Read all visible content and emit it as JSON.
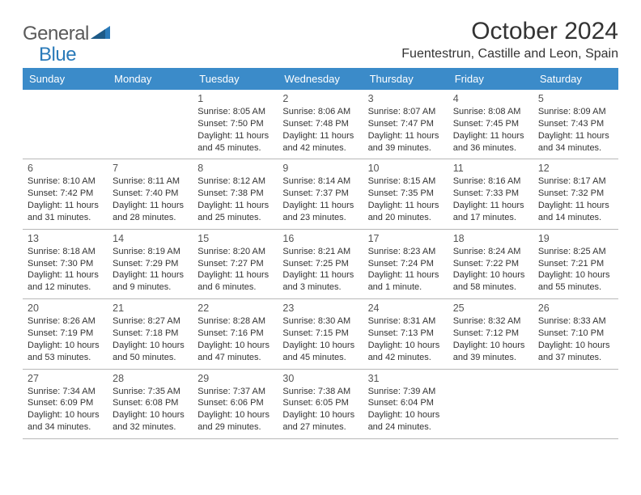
{
  "logo": {
    "text1": "General",
    "text2": "Blue"
  },
  "title": "October 2024",
  "location": "Fuentestrun, Castille and Leon, Spain",
  "colors": {
    "header_bg": "#3b8bc9",
    "header_text": "#ffffff",
    "page_bg": "#ffffff",
    "text": "#333333",
    "logo_gray": "#5a5a5a",
    "logo_blue": "#2a7ab9",
    "divider": "#b8b8b8"
  },
  "fonts": {
    "title_size": 30,
    "location_size": 16,
    "dayhead_size": 13,
    "daynum_size": 12.5,
    "info_size": 11
  },
  "dayheads": [
    "Sunday",
    "Monday",
    "Tuesday",
    "Wednesday",
    "Thursday",
    "Friday",
    "Saturday"
  ],
  "weeks": [
    [
      {
        "empty": true
      },
      {
        "empty": true
      },
      {
        "day": "1",
        "sunrise": "Sunrise: 8:05 AM",
        "sunset": "Sunset: 7:50 PM",
        "daylight": "Daylight: 11 hours and 45 minutes."
      },
      {
        "day": "2",
        "sunrise": "Sunrise: 8:06 AM",
        "sunset": "Sunset: 7:48 PM",
        "daylight": "Daylight: 11 hours and 42 minutes."
      },
      {
        "day": "3",
        "sunrise": "Sunrise: 8:07 AM",
        "sunset": "Sunset: 7:47 PM",
        "daylight": "Daylight: 11 hours and 39 minutes."
      },
      {
        "day": "4",
        "sunrise": "Sunrise: 8:08 AM",
        "sunset": "Sunset: 7:45 PM",
        "daylight": "Daylight: 11 hours and 36 minutes."
      },
      {
        "day": "5",
        "sunrise": "Sunrise: 8:09 AM",
        "sunset": "Sunset: 7:43 PM",
        "daylight": "Daylight: 11 hours and 34 minutes."
      }
    ],
    [
      {
        "day": "6",
        "sunrise": "Sunrise: 8:10 AM",
        "sunset": "Sunset: 7:42 PM",
        "daylight": "Daylight: 11 hours and 31 minutes."
      },
      {
        "day": "7",
        "sunrise": "Sunrise: 8:11 AM",
        "sunset": "Sunset: 7:40 PM",
        "daylight": "Daylight: 11 hours and 28 minutes."
      },
      {
        "day": "8",
        "sunrise": "Sunrise: 8:12 AM",
        "sunset": "Sunset: 7:38 PM",
        "daylight": "Daylight: 11 hours and 25 minutes."
      },
      {
        "day": "9",
        "sunrise": "Sunrise: 8:14 AM",
        "sunset": "Sunset: 7:37 PM",
        "daylight": "Daylight: 11 hours and 23 minutes."
      },
      {
        "day": "10",
        "sunrise": "Sunrise: 8:15 AM",
        "sunset": "Sunset: 7:35 PM",
        "daylight": "Daylight: 11 hours and 20 minutes."
      },
      {
        "day": "11",
        "sunrise": "Sunrise: 8:16 AM",
        "sunset": "Sunset: 7:33 PM",
        "daylight": "Daylight: 11 hours and 17 minutes."
      },
      {
        "day": "12",
        "sunrise": "Sunrise: 8:17 AM",
        "sunset": "Sunset: 7:32 PM",
        "daylight": "Daylight: 11 hours and 14 minutes."
      }
    ],
    [
      {
        "day": "13",
        "sunrise": "Sunrise: 8:18 AM",
        "sunset": "Sunset: 7:30 PM",
        "daylight": "Daylight: 11 hours and 12 minutes."
      },
      {
        "day": "14",
        "sunrise": "Sunrise: 8:19 AM",
        "sunset": "Sunset: 7:29 PM",
        "daylight": "Daylight: 11 hours and 9 minutes."
      },
      {
        "day": "15",
        "sunrise": "Sunrise: 8:20 AM",
        "sunset": "Sunset: 7:27 PM",
        "daylight": "Daylight: 11 hours and 6 minutes."
      },
      {
        "day": "16",
        "sunrise": "Sunrise: 8:21 AM",
        "sunset": "Sunset: 7:25 PM",
        "daylight": "Daylight: 11 hours and 3 minutes."
      },
      {
        "day": "17",
        "sunrise": "Sunrise: 8:23 AM",
        "sunset": "Sunset: 7:24 PM",
        "daylight": "Daylight: 11 hours and 1 minute."
      },
      {
        "day": "18",
        "sunrise": "Sunrise: 8:24 AM",
        "sunset": "Sunset: 7:22 PM",
        "daylight": "Daylight: 10 hours and 58 minutes."
      },
      {
        "day": "19",
        "sunrise": "Sunrise: 8:25 AM",
        "sunset": "Sunset: 7:21 PM",
        "daylight": "Daylight: 10 hours and 55 minutes."
      }
    ],
    [
      {
        "day": "20",
        "sunrise": "Sunrise: 8:26 AM",
        "sunset": "Sunset: 7:19 PM",
        "daylight": "Daylight: 10 hours and 53 minutes."
      },
      {
        "day": "21",
        "sunrise": "Sunrise: 8:27 AM",
        "sunset": "Sunset: 7:18 PM",
        "daylight": "Daylight: 10 hours and 50 minutes."
      },
      {
        "day": "22",
        "sunrise": "Sunrise: 8:28 AM",
        "sunset": "Sunset: 7:16 PM",
        "daylight": "Daylight: 10 hours and 47 minutes."
      },
      {
        "day": "23",
        "sunrise": "Sunrise: 8:30 AM",
        "sunset": "Sunset: 7:15 PM",
        "daylight": "Daylight: 10 hours and 45 minutes."
      },
      {
        "day": "24",
        "sunrise": "Sunrise: 8:31 AM",
        "sunset": "Sunset: 7:13 PM",
        "daylight": "Daylight: 10 hours and 42 minutes."
      },
      {
        "day": "25",
        "sunrise": "Sunrise: 8:32 AM",
        "sunset": "Sunset: 7:12 PM",
        "daylight": "Daylight: 10 hours and 39 minutes."
      },
      {
        "day": "26",
        "sunrise": "Sunrise: 8:33 AM",
        "sunset": "Sunset: 7:10 PM",
        "daylight": "Daylight: 10 hours and 37 minutes."
      }
    ],
    [
      {
        "day": "27",
        "sunrise": "Sunrise: 7:34 AM",
        "sunset": "Sunset: 6:09 PM",
        "daylight": "Daylight: 10 hours and 34 minutes."
      },
      {
        "day": "28",
        "sunrise": "Sunrise: 7:35 AM",
        "sunset": "Sunset: 6:08 PM",
        "daylight": "Daylight: 10 hours and 32 minutes."
      },
      {
        "day": "29",
        "sunrise": "Sunrise: 7:37 AM",
        "sunset": "Sunset: 6:06 PM",
        "daylight": "Daylight: 10 hours and 29 minutes."
      },
      {
        "day": "30",
        "sunrise": "Sunrise: 7:38 AM",
        "sunset": "Sunset: 6:05 PM",
        "daylight": "Daylight: 10 hours and 27 minutes."
      },
      {
        "day": "31",
        "sunrise": "Sunrise: 7:39 AM",
        "sunset": "Sunset: 6:04 PM",
        "daylight": "Daylight: 10 hours and 24 minutes."
      },
      {
        "empty": true
      },
      {
        "empty": true
      }
    ]
  ]
}
